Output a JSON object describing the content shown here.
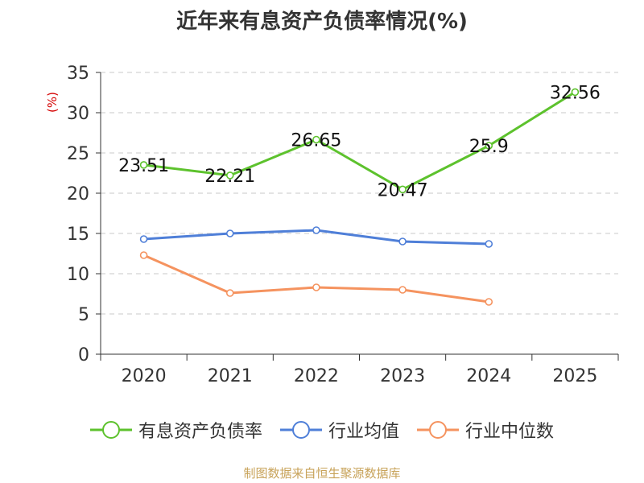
{
  "chart_data": {
    "type": "line",
    "title": "近年来有息资产负债率情况(%)",
    "ylabel": "(%)",
    "xlabel": "",
    "categories": [
      "2020",
      "2021",
      "2022",
      "2023",
      "2024",
      "2025"
    ],
    "ylim": [
      0,
      35
    ],
    "yticks": [
      0,
      5,
      10,
      15,
      20,
      25,
      30,
      35
    ],
    "grid": true,
    "legend_position": "bottom",
    "series": [
      {
        "name": "有息资产负债率",
        "color": "#5dc22d",
        "values": [
          23.51,
          22.21,
          26.65,
          20.47,
          25.9,
          32.56
        ],
        "labels": [
          "23.51",
          "22.21",
          "26.65",
          "20.47",
          "25.9",
          "32.56"
        ]
      },
      {
        "name": "行业均值",
        "color": "#4f7fd8",
        "values": [
          14.3,
          15.0,
          15.4,
          14.0,
          13.7,
          null
        ]
      },
      {
        "name": "行业中位数",
        "color": "#f5935f",
        "values": [
          12.3,
          7.6,
          8.3,
          8.0,
          6.5,
          null
        ]
      }
    ]
  },
  "source": "制图数据来自恒生聚源数据库"
}
